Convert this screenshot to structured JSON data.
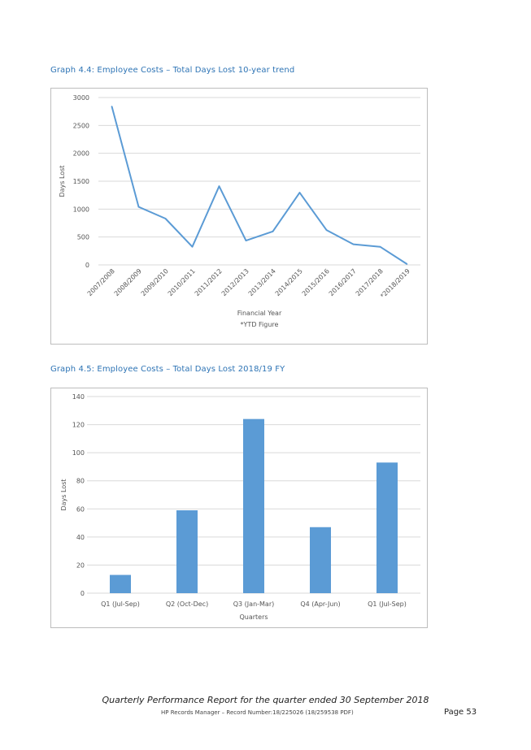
{
  "graph1": {
    "heading": "Graph 4.4: Employee Costs – Total Days Lost 10-year trend",
    "chart_data": {
      "type": "line",
      "categories": [
        "2007/2008",
        "2008/2009",
        "2009/2010",
        "2010/2011",
        "2011/2012",
        "2012/2013",
        "2013/2014",
        "2014/2015",
        "2015/2016",
        "2016/2017",
        "2017/2018",
        "*2018/2019"
      ],
      "series": [
        {
          "values": [
            2840,
            1040,
            830,
            325,
            1410,
            435,
            600,
            1295,
            625,
            370,
            325,
            15
          ]
        }
      ],
      "ylim": [
        0,
        3000
      ],
      "yticks": [
        0,
        500,
        1000,
        1500,
        2000,
        2500,
        3000
      ],
      "ylabel": "Days Lost",
      "xlabel": "Financial Year",
      "note": "*YTD Figure",
      "grid": true,
      "color": "#5b9bd5"
    }
  },
  "graph2": {
    "heading": "Graph 4.5: Employee Costs – Total Days Lost 2018/19 FY",
    "chart_data": {
      "type": "bar",
      "categories": [
        "Q1 (Jul-Sep)",
        "Q2 (Oct-Dec)",
        "Q3 (Jan-Mar)",
        "Q4 (Apr-Jun)",
        "Q1 (Jul-Sep)"
      ],
      "values": [
        13,
        59,
        124,
        47,
        93
      ],
      "ylim": [
        0,
        140
      ],
      "yticks": [
        0,
        20,
        40,
        60,
        80,
        100,
        120,
        140
      ],
      "ylabel": "Days Lost",
      "xlabel": "Quarters",
      "grid": true,
      "color": "#5b9bd5"
    }
  },
  "footer": {
    "title": "Quarterly Performance Report for the quarter ended 30 September 2018",
    "meta": "HP Records Manager – Record Number:18/225026 (18/259538 PDF)",
    "page": "Page 53"
  }
}
